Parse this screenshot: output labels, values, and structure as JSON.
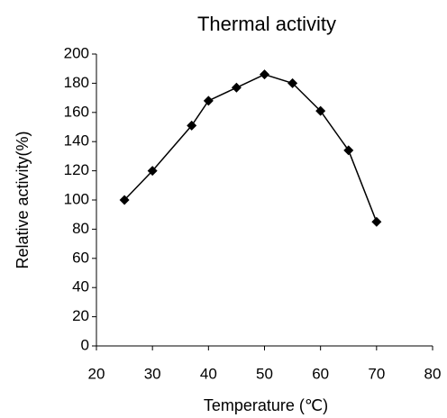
{
  "chart_data": {
    "type": "line",
    "title": "Thermal activity",
    "x_label": "Temperature (℃)",
    "y_label": "Relative activity(%)",
    "x": [
      25,
      30,
      37,
      40,
      45,
      50,
      55,
      60,
      65,
      70
    ],
    "series": [
      {
        "name": "Relative activity",
        "color": "#000000",
        "values": [
          100,
          120,
          151,
          168,
          177,
          186,
          180,
          161,
          134,
          85
        ]
      }
    ],
    "xlim": [
      20,
      80
    ],
    "xticks": [
      20,
      30,
      40,
      50,
      60,
      70,
      80
    ],
    "ylim": [
      0,
      200
    ],
    "yticks": [
      0,
      20,
      40,
      60,
      80,
      100,
      120,
      140,
      160,
      180,
      200
    ],
    "grid": false,
    "marker": "diamond"
  }
}
